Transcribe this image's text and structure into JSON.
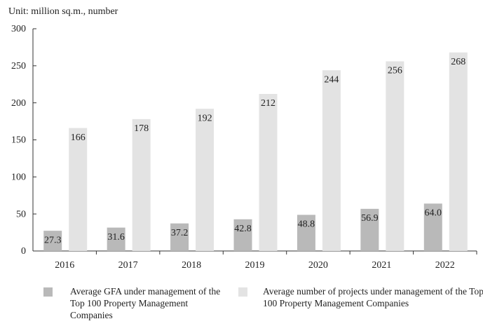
{
  "chart_data": {
    "type": "bar",
    "title": "Unit: million sq.m., number",
    "categories": [
      "2016",
      "2017",
      "2018",
      "2019",
      "2020",
      "2021",
      "2022"
    ],
    "series": [
      {
        "name": "Average GFA under management of the Top 100 Property Management Companies",
        "color": "#b9b9b9",
        "values": [
          27.3,
          31.6,
          37.2,
          42.8,
          48.8,
          56.9,
          64.0
        ],
        "value_labels": [
          "27.3",
          "31.6",
          "37.2",
          "42.8",
          "48.8",
          "56.9",
          "64.0"
        ]
      },
      {
        "name": "Average number of projects under management of the Top 100 Property Management Companies",
        "color": "#e3e3e3",
        "values": [
          166,
          178,
          192,
          212,
          244,
          256,
          268
        ]
      }
    ],
    "ylim": [
      0,
      300
    ],
    "yticks": [
      0,
      50,
      100,
      150,
      200,
      250,
      300
    ],
    "grid": false,
    "legend": "bottom"
  }
}
